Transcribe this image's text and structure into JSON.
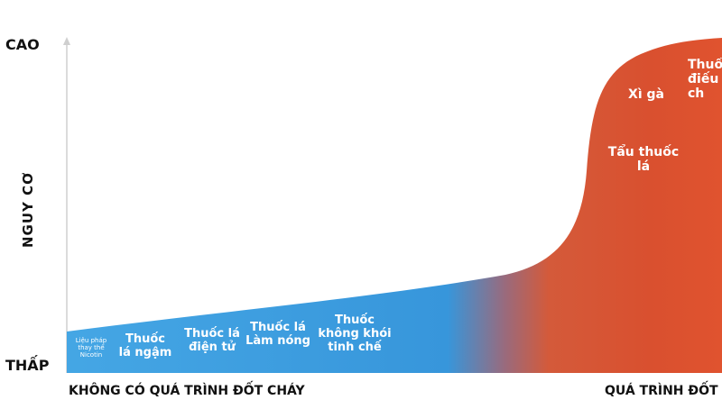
{
  "axis": {
    "y_title": "NGUY CƠ",
    "y_high": "CAO",
    "y_low": "THẤP",
    "x_left": "KHÔNG CÓ QUÁ TRÌNH ĐỐT CHÁY",
    "x_right": "QUÁ TRÌNH ĐỐT"
  },
  "products": {
    "nrt": "Liệu pháp\nthay thế\nNicotin",
    "snus": "Thuốc\nlá ngậm",
    "ecig": "Thuốc lá\nđiện tử",
    "heated": "Thuốc lá\nLàm nóng",
    "refined_smokeless": "Thuốc\nkhông khói\ntinh chế",
    "cigar": "Xì gà",
    "pipe": "Tẩu thuốc\nlá",
    "cigarette": "Thuốc\nđiếu\nch"
  },
  "colors": {
    "low_risk": "#3a9fe0",
    "high_risk": "#e0532f",
    "axis": "#cccccc"
  }
}
